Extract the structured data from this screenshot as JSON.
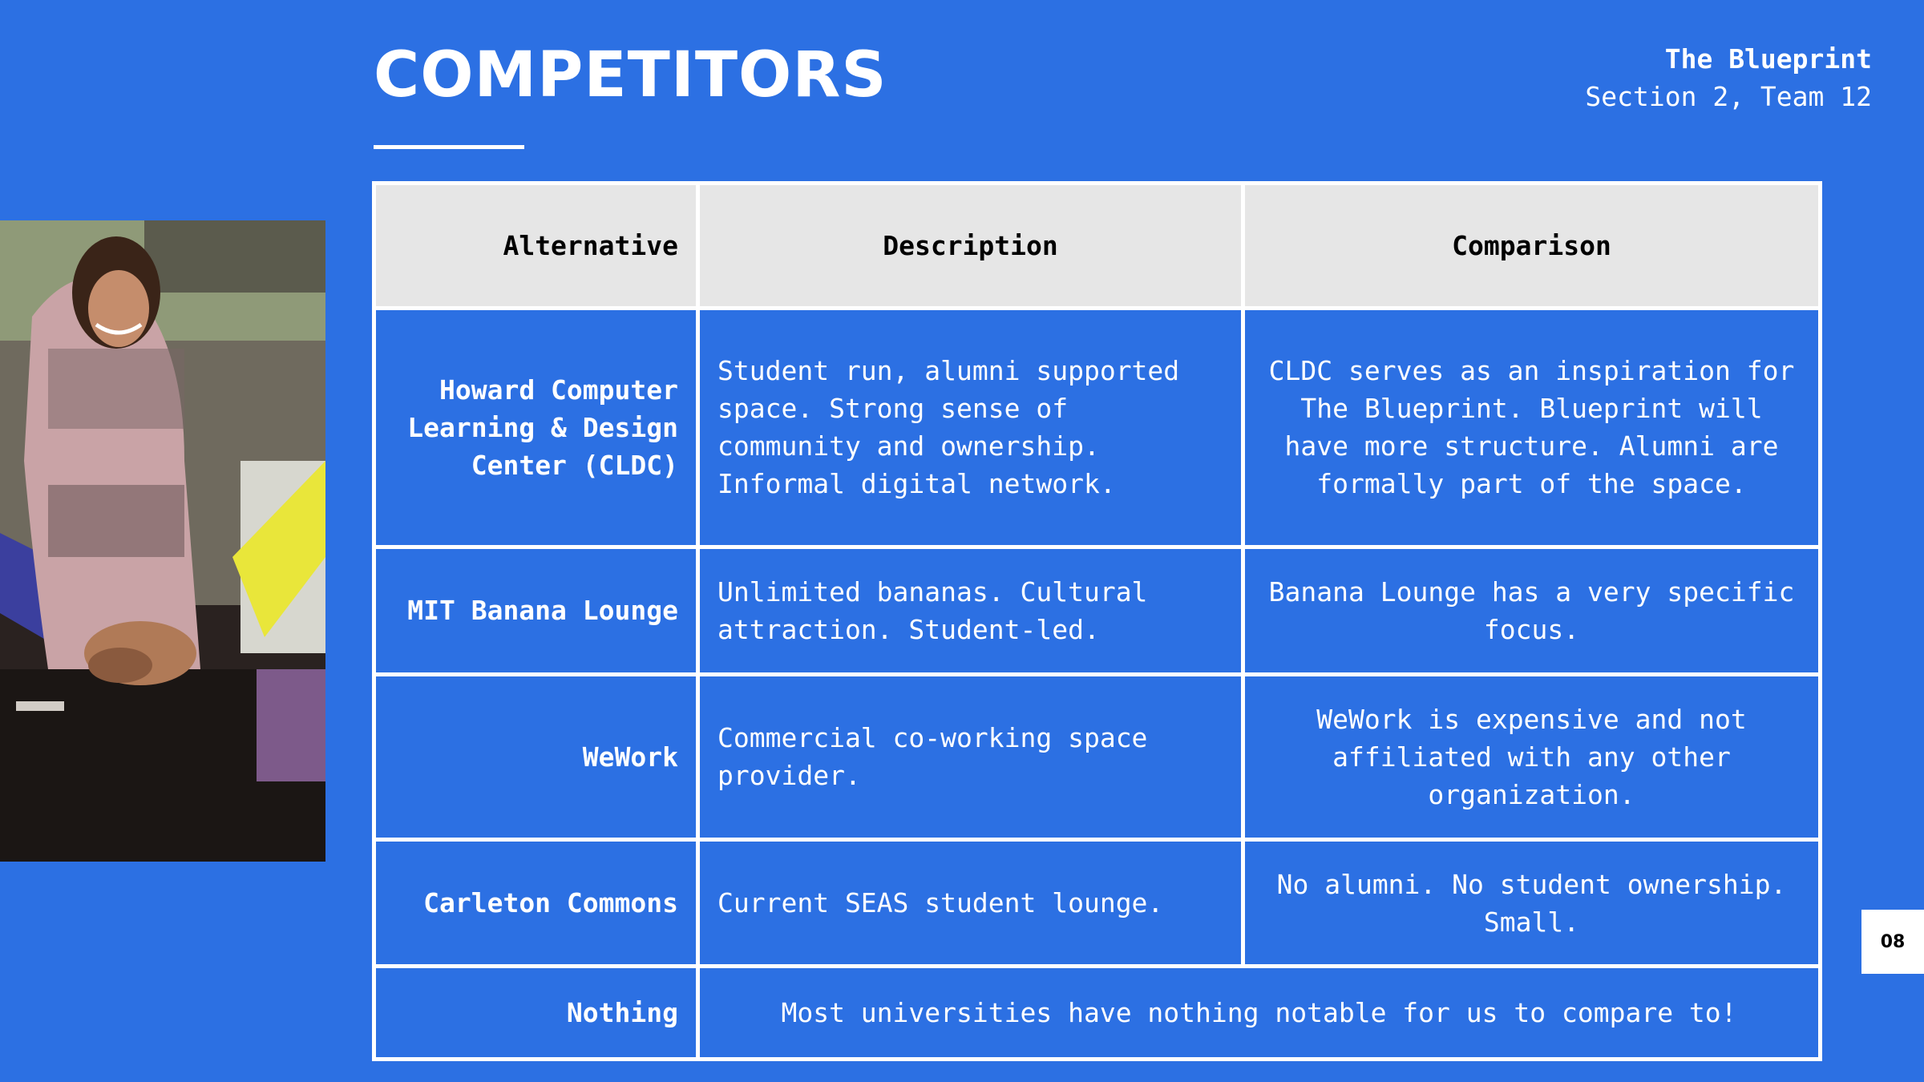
{
  "slide": {
    "title": "COMPETITORS",
    "brand": "The Blueprint",
    "team": "Section 2, Team 12",
    "page_number": "08"
  },
  "table": {
    "headers": [
      "Alternative",
      "Description",
      "Comparison"
    ],
    "rows": [
      {
        "alternative": "Howard Computer Learning & Design Center (CLDC)",
        "description": "Student run, alumni supported space. Strong sense of community and ownership. Informal digital network.",
        "comparison": "CLDC serves as an inspiration for The Blueprint. Blueprint will have more structure. Alumni are formally part of the space."
      },
      {
        "alternative": "MIT Banana Lounge",
        "description": "Unlimited bananas. Cultural attraction. Student-led.",
        "comparison": "Banana Lounge has a very specific focus."
      },
      {
        "alternative": "WeWork",
        "description": "Commercial co-working space provider.",
        "comparison": "WeWork is expensive and not affiliated with any other organization."
      },
      {
        "alternative": "Carleton Commons",
        "description": "Current SEAS student lounge.",
        "comparison": "No alumni. No student ownership. Small."
      }
    ],
    "last_row": {
      "alternative": "Nothing",
      "merged": "Most universities have nothing notable for us to compare to!"
    }
  },
  "colors": {
    "background": "#2c70e3",
    "header_fill": "#e6e6e6",
    "text": "#ffffff"
  }
}
